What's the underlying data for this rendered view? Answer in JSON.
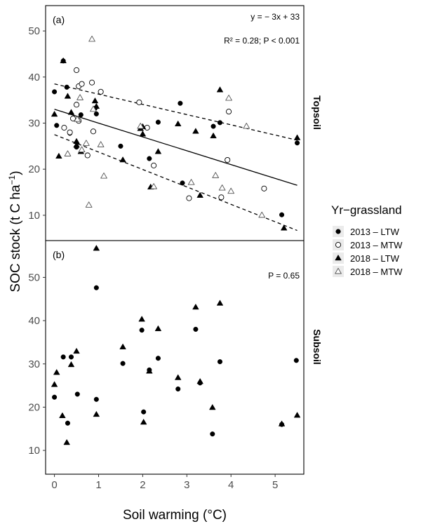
{
  "chart_data": {
    "type": "scatter",
    "xlabel": "Soil warming (°C)",
    "ylabel_main": "SOC stock (t C ha",
    "ylabel_sup": "−1",
    "ylabel_close": ")",
    "xticks": [
      "0",
      "1",
      "2",
      "3",
      "4",
      "5"
    ],
    "xlim": [
      -0.2,
      5.65
    ],
    "legend": {
      "title": "Yr−grassland",
      "placement": "right",
      "entries": [
        {
          "label": "2013 – LTW",
          "shape": "circle",
          "fill": "#000000"
        },
        {
          "label": "2013 – MTW",
          "shape": "circle",
          "fill": "none"
        },
        {
          "label": "2018 – LTW",
          "shape": "triangle",
          "fill": "#000000"
        },
        {
          "label": "2018 – MTW",
          "shape": "triangle",
          "fill": "none"
        }
      ]
    },
    "panels": [
      {
        "tag": "(a)",
        "strip": "Topsoil",
        "ylim": [
          4.5,
          55.5
        ],
        "yticks": [
          "10",
          "20",
          "30",
          "40",
          "50"
        ],
        "equation": "y = − 3x + 33",
        "stats": "R² = 0.28; P < 0.001",
        "fit_line": {
          "slope": -3,
          "intercept": 33,
          "x_range": [
            0,
            5.5
          ]
        },
        "ci_upper": {
          "x": [
            0,
            5.5
          ],
          "y": [
            38.5,
            26.3
          ]
        },
        "ci_lower": {
          "x": [
            0,
            5.5
          ],
          "y": [
            27.5,
            6.7
          ]
        },
        "series": [
          {
            "name": "2013 – LTW",
            "points": [
              [
                0.0,
                36.8
              ],
              [
                0.05,
                29.5
              ],
              [
                0.2,
                43.5
              ],
              [
                0.28,
                37.8
              ],
              [
                0.35,
                27.8
              ],
              [
                0.5,
                24.8
              ],
              [
                0.6,
                31.8
              ],
              [
                0.92,
                33.2
              ],
              [
                0.95,
                32.0
              ],
              [
                1.5,
                25.0
              ],
              [
                2.15,
                22.3
              ],
              [
                2.35,
                30.2
              ],
              [
                2.85,
                34.3
              ],
              [
                2.9,
                17.0
              ],
              [
                3.6,
                29.3
              ],
              [
                3.75,
                30.1
              ],
              [
                5.15,
                10.1
              ],
              [
                5.5,
                25.7
              ]
            ]
          },
          {
            "name": "2013 – MTW",
            "points": [
              [
                0.22,
                29.0
              ],
              [
                0.35,
                28.0
              ],
              [
                0.42,
                31.0
              ],
              [
                0.5,
                41.5
              ],
              [
                0.55,
                38.0
              ],
              [
                0.5,
                34.0
              ],
              [
                0.55,
                30.5
              ],
              [
                0.62,
                38.5
              ],
              [
                0.75,
                23.0
              ],
              [
                0.85,
                38.8
              ],
              [
                0.88,
                28.2
              ],
              [
                1.05,
                36.8
              ],
              [
                1.92,
                34.5
              ],
              [
                2.1,
                29.0
              ],
              [
                2.25,
                20.8
              ],
              [
                3.05,
                13.7
              ],
              [
                3.78,
                13.9
              ],
              [
                3.95,
                32.5
              ],
              [
                3.92,
                22.0
              ],
              [
                4.75,
                15.8
              ]
            ]
          },
          {
            "name": "2018 – LTW",
            "points": [
              [
                0.0,
                31.9
              ],
              [
                0.1,
                22.8
              ],
              [
                0.2,
                43.5
              ],
              [
                0.3,
                35.8
              ],
              [
                0.38,
                32.3
              ],
              [
                0.5,
                25.2
              ],
              [
                0.5,
                26.0
              ],
              [
                0.6,
                23.8
              ],
              [
                0.95,
                33.6
              ],
              [
                0.92,
                34.8
              ],
              [
                1.55,
                22.0
              ],
              [
                1.95,
                28.8
              ],
              [
                2.0,
                29.2
              ],
              [
                2.0,
                27.6
              ],
              [
                2.18,
                16.1
              ],
              [
                2.35,
                23.8
              ],
              [
                2.8,
                29.8
              ],
              [
                3.2,
                28.2
              ],
              [
                3.3,
                14.3
              ],
              [
                3.6,
                27.2
              ],
              [
                3.75,
                37.2
              ],
              [
                5.2,
                7.2
              ],
              [
                5.5,
                26.8
              ]
            ]
          },
          {
            "name": "2018 – MTW",
            "points": [
              [
                0.3,
                23.3
              ],
              [
                0.52,
                30.8
              ],
              [
                0.58,
                35.5
              ],
              [
                0.62,
                24.2
              ],
              [
                0.72,
                25.6
              ],
              [
                0.78,
                12.2
              ],
              [
                0.85,
                48.2
              ],
              [
                0.88,
                33.0
              ],
              [
                1.05,
                25.3
              ],
              [
                1.12,
                18.5
              ],
              [
                1.95,
                29.3
              ],
              [
                2.25,
                16.2
              ],
              [
                3.1,
                17.1
              ],
              [
                3.65,
                18.6
              ],
              [
                3.8,
                15.9
              ],
              [
                3.95,
                35.4
              ],
              [
                4.0,
                15.2
              ],
              [
                4.35,
                29.3
              ],
              [
                4.7,
                10.0
              ]
            ]
          }
        ]
      },
      {
        "tag": "(b)",
        "strip": "Subsoil",
        "ylim": [
          4.5,
          58.5
        ],
        "yticks": [
          "10",
          "20",
          "30",
          "40",
          "50"
        ],
        "equation": "",
        "stats": "P = 0.65",
        "series": [
          {
            "name": "2013 – LTW",
            "points": [
              [
                0.0,
                22.3
              ],
              [
                0.2,
                31.6
              ],
              [
                0.3,
                16.3
              ],
              [
                0.38,
                31.6
              ],
              [
                0.52,
                23.0
              ],
              [
                0.95,
                21.8
              ],
              [
                0.95,
                47.6
              ],
              [
                1.55,
                30.1
              ],
              [
                1.98,
                37.8
              ],
              [
                2.02,
                18.9
              ],
              [
                2.15,
                28.6
              ],
              [
                2.35,
                31.3
              ],
              [
                2.8,
                24.2
              ],
              [
                3.2,
                38.0
              ],
              [
                3.3,
                25.6
              ],
              [
                3.58,
                13.8
              ],
              [
                3.75,
                30.5
              ],
              [
                5.15,
                16.0
              ],
              [
                5.48,
                30.8
              ]
            ]
          },
          {
            "name": "2018 – LTW",
            "points": [
              [
                0.0,
                25.2
              ],
              [
                0.05,
                28.0
              ],
              [
                0.18,
                18.0
              ],
              [
                0.28,
                11.8
              ],
              [
                0.38,
                29.8
              ],
              [
                0.5,
                32.9
              ],
              [
                0.95,
                56.7
              ],
              [
                0.95,
                18.3
              ],
              [
                1.55,
                33.9
              ],
              [
                1.98,
                40.3
              ],
              [
                2.02,
                16.5
              ],
              [
                2.15,
                28.3
              ],
              [
                2.35,
                38.1
              ],
              [
                2.8,
                26.8
              ],
              [
                3.2,
                43.1
              ],
              [
                3.3,
                25.9
              ],
              [
                3.58,
                19.9
              ],
              [
                3.75,
                44.0
              ],
              [
                5.15,
                16.1
              ],
              [
                5.5,
                18.1
              ]
            ]
          }
        ]
      }
    ]
  }
}
